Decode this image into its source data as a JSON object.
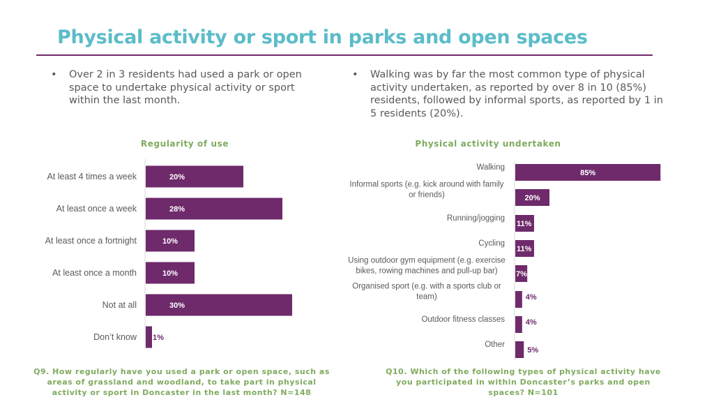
{
  "title": "Physical activity or sport in parks and open spaces",
  "bullets": {
    "left": "Over 2 in 3 residents had used a park or open space to undertake physical activity or sport within the last month.",
    "right": "Walking was by far the most common type of physical activity undertaken, as reported by over 8 in 10 (85%) residents, followed by informal sports, as reported by 1 in 5 residents (20%).",
    "symbol": "•"
  },
  "colors": {
    "title": "#5bbcc9",
    "bar": "#6e2a6b",
    "chart_title": "#7faa5e",
    "rule": "#6e2a6b"
  },
  "chart_data": [
    {
      "type": "bar",
      "orientation": "horizontal",
      "title": "Regularity of use",
      "categories": [
        "At least 4 times a week",
        "At least once a week",
        "At least once a fortnight",
        "At least once a month",
        "Not at all",
        "Don’t know"
      ],
      "values": [
        20,
        28,
        10,
        10,
        30,
        1
      ],
      "value_labels": [
        "20%",
        "28%",
        "10%",
        "10%",
        "30%",
        "1%"
      ],
      "unit": "%",
      "note": "Q9. How regularly have you used a park or open space, such as areas of grassland and woodland, to take part in physical activity or sport in Doncaster in the last month? N=148"
    },
    {
      "type": "bar",
      "orientation": "horizontal",
      "title": "Physical activity undertaken",
      "categories": [
        [
          "Walking"
        ],
        [
          "Informal sports (e.g. kick around with family",
          "or friends)"
        ],
        [
          "Running/jogging"
        ],
        [
          "Cycling"
        ],
        [
          "Using outdoor gym equipment (e.g. exercise",
          "bikes, rowing machines and pull-up bar)"
        ],
        [
          "Organised sport (e.g. with a sports club or",
          "team)"
        ],
        [
          "Outdoor fitness classes"
        ],
        [
          "Other"
        ]
      ],
      "values": [
        85,
        20,
        11,
        11,
        7,
        4,
        4,
        5
      ],
      "value_labels": [
        "85%",
        "20%",
        "11%",
        "11%",
        "7%",
        "4%",
        "4%",
        "5%"
      ],
      "unit": "%",
      "note": "Q10. Which of the following types of physical activity have you participated in within Doncaster’s parks and open spaces? N=101"
    }
  ]
}
